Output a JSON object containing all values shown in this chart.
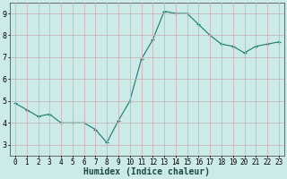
{
  "x": [
    0,
    1,
    2,
    3,
    4,
    5,
    6,
    7,
    8,
    9,
    10,
    11,
    12,
    13,
    14,
    15,
    16,
    17,
    18,
    19,
    20,
    21,
    22,
    23
  ],
  "y": [
    4.9,
    4.6,
    4.3,
    4.4,
    4.0,
    4.0,
    4.0,
    3.7,
    3.1,
    4.1,
    5.0,
    6.9,
    7.8,
    9.1,
    9.0,
    9.0,
    8.5,
    8.0,
    7.6,
    7.5,
    7.2,
    7.5,
    7.6,
    7.7
  ],
  "line_color": "#1a7a6e",
  "marker": "+",
  "markersize": 3.0,
  "linewidth": 0.8,
  "xlabel": "Humidex (Indice chaleur)",
  "xlabel_fontsize": 7,
  "background_color": "#cceae7",
  "grid_color": "#c8b8b8",
  "xlim": [
    -0.5,
    23.5
  ],
  "ylim": [
    2.5,
    9.5
  ],
  "yticks": [
    3,
    4,
    5,
    6,
    7,
    8,
    9
  ],
  "xticks": [
    0,
    1,
    2,
    3,
    4,
    5,
    6,
    7,
    8,
    9,
    10,
    11,
    12,
    13,
    14,
    15,
    16,
    17,
    18,
    19,
    20,
    21,
    22,
    23
  ],
  "tick_labelsize": 5.5,
  "spine_color": "#555555"
}
